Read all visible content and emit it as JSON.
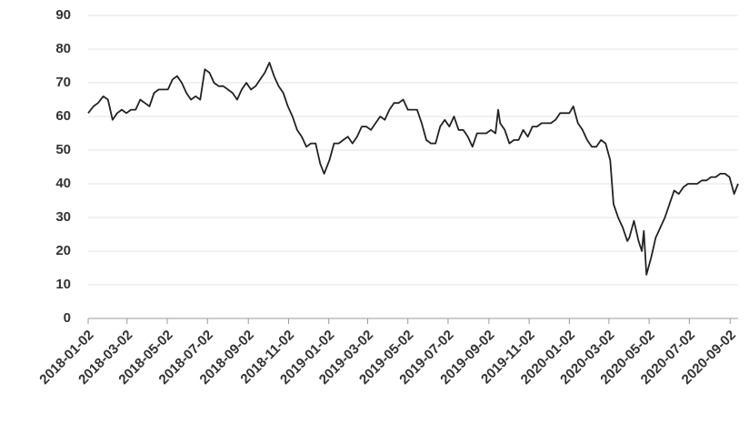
{
  "chart_data": {
    "type": "line",
    "x": [
      "2018-01-02",
      "2018-01-10",
      "2018-01-17",
      "2018-01-25",
      "2018-02-01",
      "2018-02-08",
      "2018-02-15",
      "2018-02-22",
      "2018-03-01",
      "2018-03-08",
      "2018-03-15",
      "2018-03-22",
      "2018-03-29",
      "2018-04-05",
      "2018-04-12",
      "2018-04-19",
      "2018-04-26",
      "2018-05-03",
      "2018-05-10",
      "2018-05-17",
      "2018-05-24",
      "2018-05-31",
      "2018-06-07",
      "2018-06-14",
      "2018-06-21",
      "2018-06-28",
      "2018-07-05",
      "2018-07-12",
      "2018-07-19",
      "2018-07-26",
      "2018-08-02",
      "2018-08-09",
      "2018-08-16",
      "2018-08-23",
      "2018-08-30",
      "2018-09-06",
      "2018-09-13",
      "2018-09-20",
      "2018-09-27",
      "2018-10-04",
      "2018-10-11",
      "2018-10-18",
      "2018-10-25",
      "2018-11-01",
      "2018-11-08",
      "2018-11-15",
      "2018-11-22",
      "2018-11-29",
      "2018-12-06",
      "2018-12-13",
      "2018-12-20",
      "2018-12-26",
      "2019-01-03",
      "2019-01-10",
      "2019-01-17",
      "2019-01-24",
      "2019-01-31",
      "2019-02-07",
      "2019-02-14",
      "2019-02-21",
      "2019-02-28",
      "2019-03-07",
      "2019-03-14",
      "2019-03-21",
      "2019-03-28",
      "2019-04-04",
      "2019-04-11",
      "2019-04-18",
      "2019-04-25",
      "2019-05-02",
      "2019-05-09",
      "2019-05-16",
      "2019-05-23",
      "2019-05-30",
      "2019-06-06",
      "2019-06-13",
      "2019-06-20",
      "2019-06-27",
      "2019-07-04",
      "2019-07-11",
      "2019-07-18",
      "2019-07-25",
      "2019-08-01",
      "2019-08-08",
      "2019-08-15",
      "2019-08-22",
      "2019-08-29",
      "2019-09-05",
      "2019-09-12",
      "2019-09-16",
      "2019-09-19",
      "2019-09-26",
      "2019-10-03",
      "2019-10-10",
      "2019-10-17",
      "2019-10-24",
      "2019-10-31",
      "2019-11-07",
      "2019-11-14",
      "2019-11-21",
      "2019-11-28",
      "2019-12-05",
      "2019-12-12",
      "2019-12-19",
      "2019-12-26",
      "2020-01-02",
      "2020-01-08",
      "2020-01-15",
      "2020-01-22",
      "2020-01-29",
      "2020-02-05",
      "2020-02-12",
      "2020-02-19",
      "2020-02-26",
      "2020-03-04",
      "2020-03-09",
      "2020-03-16",
      "2020-03-23",
      "2020-03-30",
      "2020-04-02",
      "2020-04-09",
      "2020-04-16",
      "2020-04-21",
      "2020-04-24",
      "2020-04-28",
      "2020-05-05",
      "2020-05-12",
      "2020-05-19",
      "2020-05-26",
      "2020-06-02",
      "2020-06-09",
      "2020-06-16",
      "2020-06-23",
      "2020-06-30",
      "2020-07-07",
      "2020-07-14",
      "2020-07-21",
      "2020-07-28",
      "2020-08-04",
      "2020-08-11",
      "2020-08-18",
      "2020-08-25",
      "2020-09-01",
      "2020-09-08",
      "2020-09-14"
    ],
    "values": [
      61,
      63,
      64,
      66,
      65,
      59,
      61,
      62,
      61,
      62,
      62,
      65,
      64,
      63,
      67,
      68,
      68,
      68,
      71,
      72,
      70,
      67,
      65,
      66,
      65,
      74,
      73,
      70,
      69,
      69,
      68,
      67,
      65,
      68,
      70,
      68,
      69,
      71,
      73,
      76,
      72,
      69,
      67,
      63,
      60,
      56,
      54,
      51,
      52,
      52,
      46,
      43,
      47,
      52,
      52,
      53,
      54,
      52,
      54,
      57,
      57,
      56,
      58,
      60,
      59,
      62,
      64,
      64,
      65,
      62,
      62,
      62,
      58,
      53,
      52,
      52,
      57,
      59,
      57,
      60,
      56,
      56,
      54,
      51,
      55,
      55,
      55,
      56,
      55,
      62,
      58,
      56,
      52,
      53,
      53,
      56,
      54,
      57,
      57,
      58,
      58,
      58,
      59,
      61,
      61,
      61,
      63,
      58,
      56,
      53,
      51,
      51,
      53,
      52,
      47,
      34,
      30,
      27,
      23,
      24,
      29,
      23,
      20,
      26,
      13,
      18,
      24,
      27,
      30,
      34,
      38,
      37,
      39,
      40,
      40,
      40,
      41,
      41,
      42,
      42,
      43,
      43,
      42,
      37,
      40
    ],
    "color": "#222222",
    "xlim": [
      "2018-01-02",
      "2020-09-14"
    ],
    "xticks": [
      "2018-01-02",
      "2018-03-02",
      "2018-05-02",
      "2018-07-02",
      "2018-09-02",
      "2018-11-02",
      "2019-01-02",
      "2019-03-02",
      "2019-05-02",
      "2019-07-02",
      "2019-09-02",
      "2019-11-02",
      "2020-01-02",
      "2020-03-02",
      "2020-05-02",
      "2020-07-02",
      "2020-09-02"
    ],
    "ylim": [
      0,
      90
    ],
    "yticks": [
      0,
      10,
      20,
      30,
      40,
      50,
      60,
      70,
      80,
      90
    ],
    "grid": true
  }
}
